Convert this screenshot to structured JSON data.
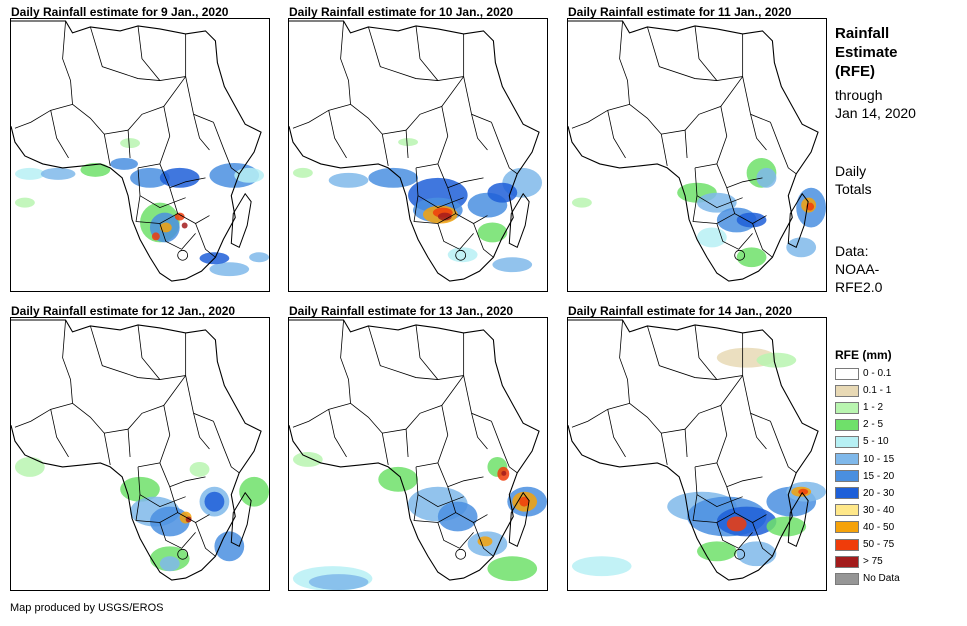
{
  "panels": [
    {
      "title": "Daily Rainfall estimate for 9 Jan., 2020",
      "pattern": "day9"
    },
    {
      "title": "Daily Rainfall estimate for 10 Jan., 2020",
      "pattern": "day10"
    },
    {
      "title": "Daily Rainfall estimate for 11 Jan., 2020",
      "pattern": "day11"
    },
    {
      "title": "Daily Rainfall estimate for 12 Jan., 2020",
      "pattern": "day12"
    },
    {
      "title": "Daily Rainfall estimate for 13 Jan., 2020",
      "pattern": "day13"
    },
    {
      "title": "Daily Rainfall estimate for 14 Jan., 2020",
      "pattern": "day14"
    }
  ],
  "sidebar": {
    "title_line1": "Rainfall",
    "title_line2": "Estimate",
    "title_line3": "(RFE)",
    "through_label": "through",
    "through_date": "Jan 14, 2020",
    "totals_line1": "Daily",
    "totals_line2": "Totals",
    "data_line1": "Data:",
    "data_line2": "NOAA-",
    "data_line3": "RFE2.0"
  },
  "legend": {
    "title": "RFE (mm)",
    "items": [
      {
        "label": "0 - 0.1",
        "color": "#ffffff"
      },
      {
        "label": "0.1 - 1",
        "color": "#e8d9b5"
      },
      {
        "label": "1 - 2",
        "color": "#b9f5b0"
      },
      {
        "label": "2 - 5",
        "color": "#6fe06a"
      },
      {
        "label": "5 - 10",
        "color": "#b7f0f4"
      },
      {
        "label": "10 - 15",
        "color": "#7fb8ea"
      },
      {
        "label": "15 - 20",
        "color": "#4a8fe0"
      },
      {
        "label": "20 - 30",
        "color": "#1e5fd8"
      },
      {
        "label": "30 - 40",
        "color": "#ffe88a"
      },
      {
        "label": "40 - 50",
        "color": "#f5a20a"
      },
      {
        "label": "50 - 75",
        "color": "#f03c0a"
      },
      {
        "label": "> 75",
        "color": "#a31c1c"
      },
      {
        "label": "No Data",
        "color": "#969696"
      }
    ]
  },
  "footer": "Map produced by USGS/EROS"
}
